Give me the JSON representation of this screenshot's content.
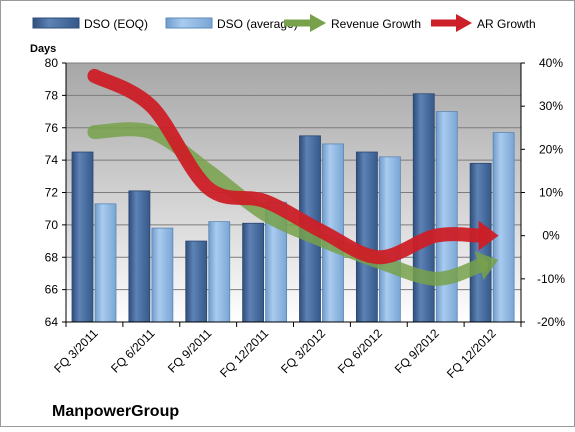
{
  "chart_data": {
    "type": "bar",
    "company": "ManpowerGroup",
    "y_label": "Days",
    "categories": [
      "FQ 3/2011",
      "FQ 6/2011",
      "FQ 9/2011",
      "FQ 12/2011",
      "FQ 3/2012",
      "FQ 6/2012",
      "FQ 9/2012",
      "FQ 12/2012"
    ],
    "ylim": [
      64,
      80
    ],
    "y_ticks": [
      "64",
      "66",
      "68",
      "70",
      "72",
      "74",
      "76",
      "78",
      "80"
    ],
    "y2lim": [
      -20,
      40
    ],
    "y2_ticks": [
      "-20%",
      "-10%",
      "0%",
      "10%",
      "20%",
      "30%",
      "40%"
    ],
    "grid": true,
    "legend_position": "top",
    "series": [
      {
        "name": "DSO (EOQ)",
        "kind": "bar",
        "axis": "left",
        "color": "#4a6fa1",
        "values": [
          74.5,
          72.1,
          69.0,
          70.1,
          75.5,
          74.5,
          78.1,
          73.8
        ]
      },
      {
        "name": "DSO (average)",
        "kind": "bar",
        "axis": "left",
        "color": "#8cb4dd",
        "values": [
          71.3,
          69.8,
          70.2,
          71.4,
          75.0,
          74.2,
          77.0,
          75.7
        ]
      },
      {
        "name": "Revenue Growth",
        "kind": "line",
        "axis": "right",
        "color": "#77a14a",
        "values": [
          24,
          24,
          15,
          5,
          -1,
          -6,
          -10,
          -6
        ]
      },
      {
        "name": "AR Growth",
        "kind": "line",
        "axis": "right",
        "color": "#cc1f27",
        "values": [
          37,
          30,
          11,
          8,
          1,
          -5,
          0,
          0
        ]
      }
    ]
  }
}
